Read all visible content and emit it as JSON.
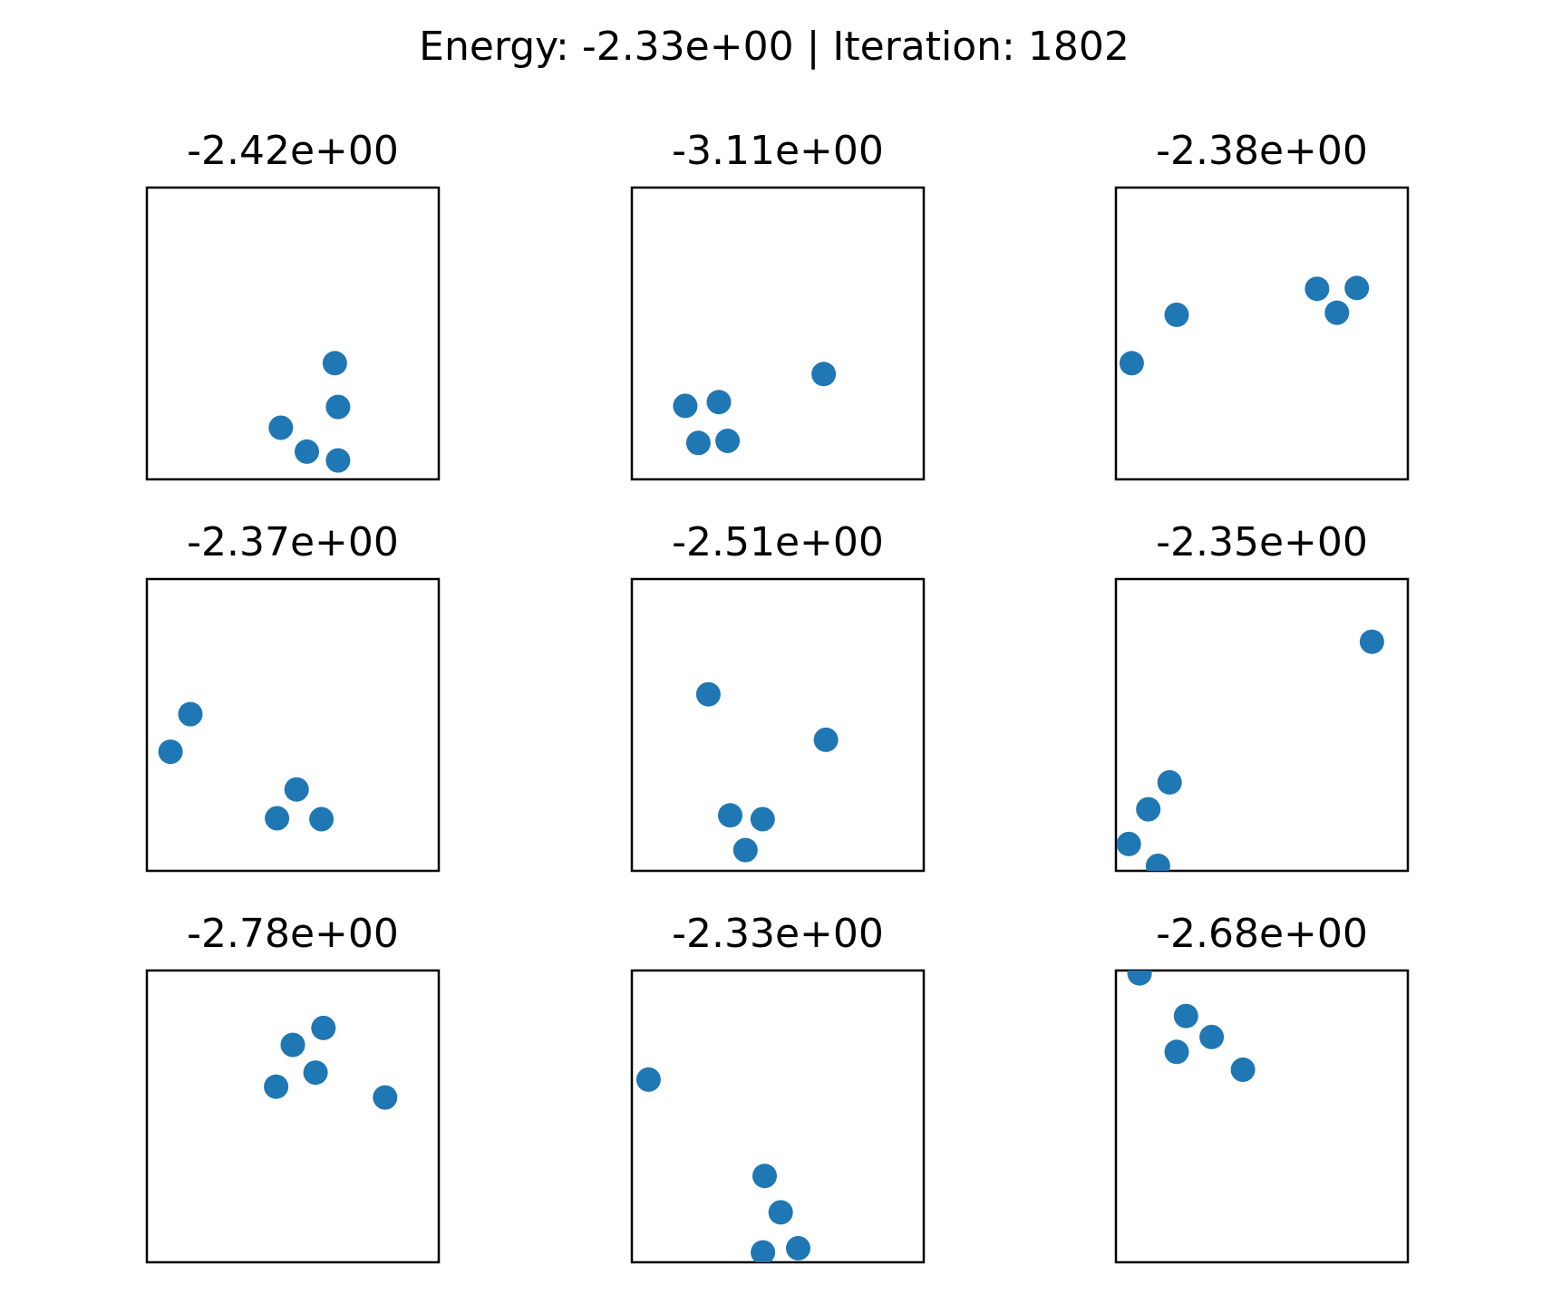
{
  "chart_data": {
    "type": "scatter",
    "title": "Energy: -2.33e+00 | Iteration: 1802",
    "marker_color": "#1f77b4",
    "layout": "3x3 grid",
    "grid": false,
    "ticks": false,
    "xlim": [
      0,
      1
    ],
    "ylim": [
      0,
      1
    ],
    "panels": [
      {
        "title": "-2.42e+00",
        "points": [
          {
            "x": 0.644,
            "y": 0.398
          },
          {
            "x": 0.655,
            "y": 0.248
          },
          {
            "x": 0.459,
            "y": 0.177
          },
          {
            "x": 0.548,
            "y": 0.095
          },
          {
            "x": 0.655,
            "y": 0.065
          }
        ]
      },
      {
        "title": "-3.11e+00",
        "points": [
          {
            "x": 0.657,
            "y": 0.361
          },
          {
            "x": 0.298,
            "y": 0.265
          },
          {
            "x": 0.183,
            "y": 0.252
          },
          {
            "x": 0.328,
            "y": 0.132
          },
          {
            "x": 0.228,
            "y": 0.125
          }
        ]
      },
      {
        "title": "-2.38e+00",
        "points": [
          {
            "x": 0.689,
            "y": 0.653
          },
          {
            "x": 0.825,
            "y": 0.656
          },
          {
            "x": 0.757,
            "y": 0.571
          },
          {
            "x": 0.208,
            "y": 0.564
          },
          {
            "x": 0.054,
            "y": 0.398
          }
        ]
      },
      {
        "title": "-2.37e+00",
        "points": [
          {
            "x": 0.149,
            "y": 0.537
          },
          {
            "x": 0.081,
            "y": 0.408
          },
          {
            "x": 0.513,
            "y": 0.279
          },
          {
            "x": 0.446,
            "y": 0.18
          },
          {
            "x": 0.598,
            "y": 0.177
          }
        ]
      },
      {
        "title": "-2.51e+00",
        "points": [
          {
            "x": 0.262,
            "y": 0.605
          },
          {
            "x": 0.665,
            "y": 0.449
          },
          {
            "x": 0.337,
            "y": 0.19
          },
          {
            "x": 0.448,
            "y": 0.177
          },
          {
            "x": 0.389,
            "y": 0.071
          }
        ]
      },
      {
        "title": "-2.35e+00",
        "points": [
          {
            "x": 0.877,
            "y": 0.785
          },
          {
            "x": 0.184,
            "y": 0.303
          },
          {
            "x": 0.111,
            "y": 0.211
          },
          {
            "x": 0.044,
            "y": 0.092
          },
          {
            "x": 0.144,
            "y": 0.017
          }
        ]
      },
      {
        "title": "-2.78e+00",
        "points": [
          {
            "x": 0.605,
            "y": 0.803
          },
          {
            "x": 0.5,
            "y": 0.745
          },
          {
            "x": 0.578,
            "y": 0.65
          },
          {
            "x": 0.443,
            "y": 0.602
          },
          {
            "x": 0.816,
            "y": 0.565
          }
        ]
      },
      {
        "title": "-2.33e+00",
        "points": [
          {
            "x": 0.057,
            "y": 0.626
          },
          {
            "x": 0.455,
            "y": 0.296
          },
          {
            "x": 0.51,
            "y": 0.171
          },
          {
            "x": 0.57,
            "y": 0.048
          },
          {
            "x": 0.449,
            "y": 0.034
          }
        ]
      },
      {
        "title": "-2.68e+00",
        "points": [
          {
            "x": 0.081,
            "y": 0.99
          },
          {
            "x": 0.24,
            "y": 0.844
          },
          {
            "x": 0.328,
            "y": 0.772
          },
          {
            "x": 0.208,
            "y": 0.721
          },
          {
            "x": 0.435,
            "y": 0.66
          }
        ]
      }
    ]
  }
}
